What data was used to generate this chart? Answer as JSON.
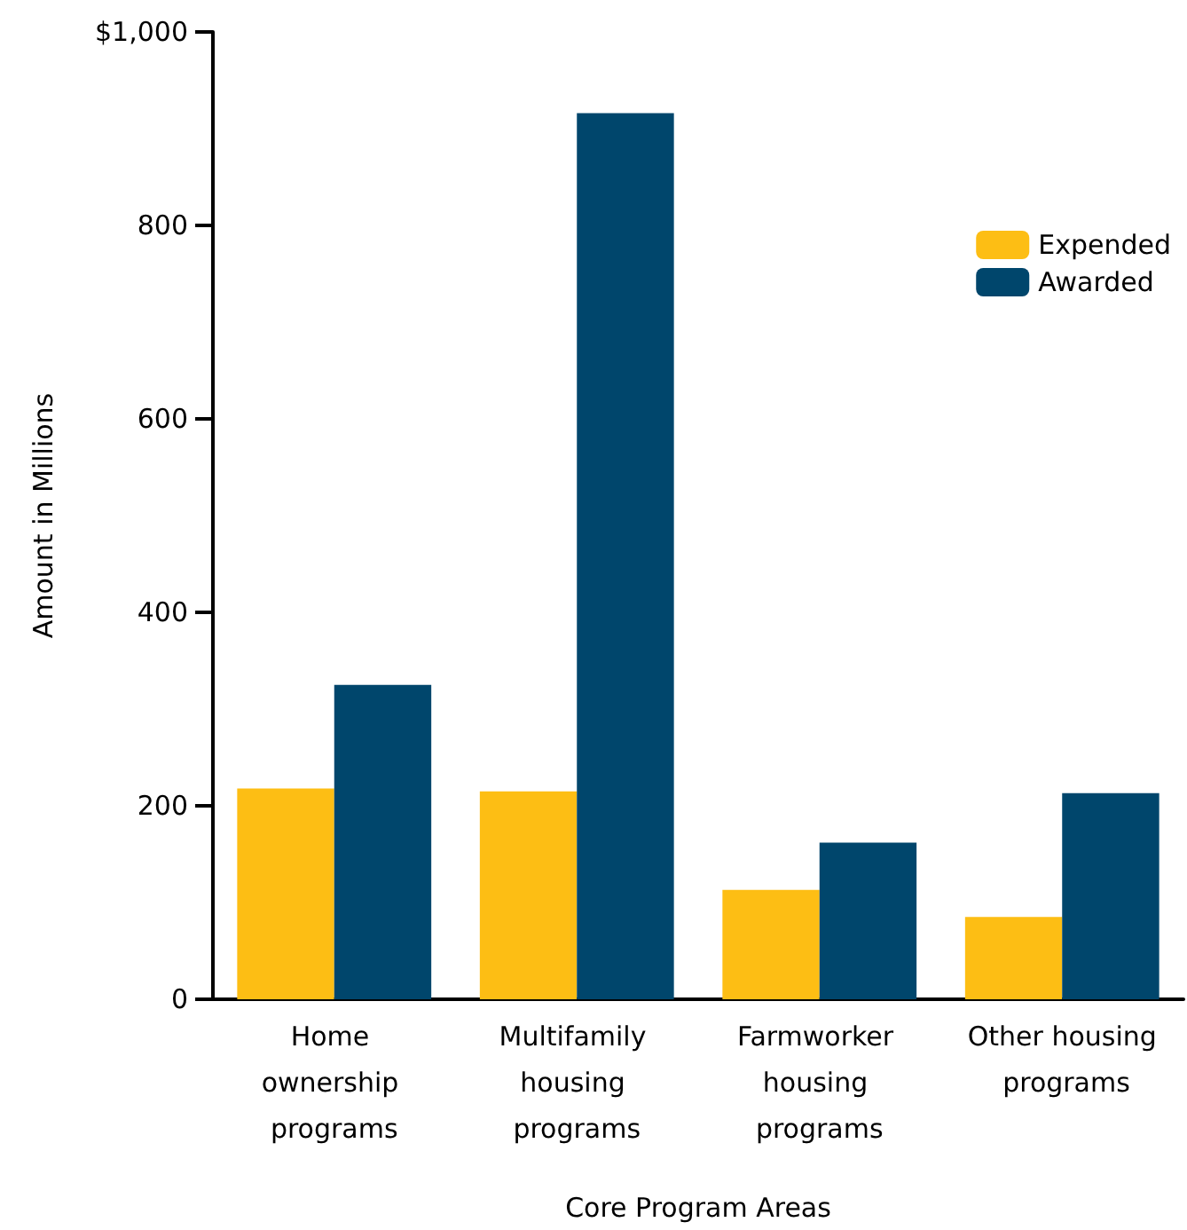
{
  "chart_data": {
    "type": "bar",
    "xlabel": "Core Program Areas",
    "ylabel": "Amount in Millions",
    "categories": [
      "Home ownership programs",
      "Multifamily housing programs",
      "Farmworker housing programs",
      "Other housing programs"
    ],
    "series": [
      {
        "name": "Expended",
        "color": "#fdbe14",
        "values": [
          218,
          215,
          113,
          85
        ]
      },
      {
        "name": "Awarded",
        "color": "#00466c",
        "values": [
          325,
          916,
          162,
          213
        ]
      }
    ],
    "ylim": [
      0,
      1000
    ],
    "yticks": [
      0,
      200,
      400,
      600,
      800,
      {
        "value": 1000,
        "label": "$1,000"
      }
    ],
    "grid": false,
    "legend": "top right"
  }
}
